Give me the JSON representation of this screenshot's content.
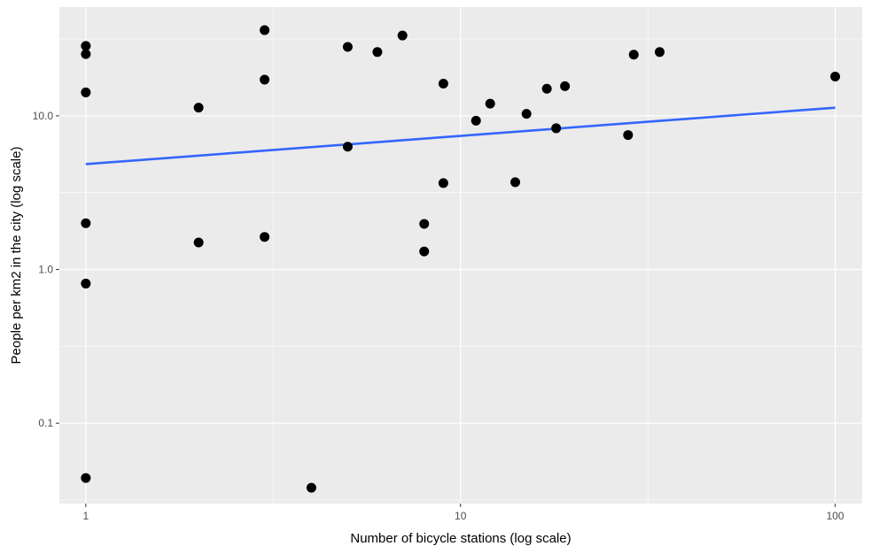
{
  "chart_data": {
    "type": "scatter",
    "xlabel": "Number of bicycle stations (log scale)",
    "ylabel": "People per km2 in the city (log scale)",
    "x_scale": "log10",
    "y_scale": "log10",
    "xlim": [
      0.85,
      118
    ],
    "ylim": [
      0.03,
      51
    ],
    "x_ticks": [
      {
        "value": 1,
        "label": "1"
      },
      {
        "value": 10,
        "label": "10"
      },
      {
        "value": 100,
        "label": "100"
      }
    ],
    "y_ticks": [
      {
        "value": 0.1,
        "label": "0.1"
      },
      {
        "value": 1,
        "label": "1.0"
      },
      {
        "value": 10,
        "label": "10.0"
      }
    ],
    "grid": true,
    "legend": "none",
    "point_color": "#000000",
    "panel_background": "#ebebeb",
    "grid_color": "#ffffff",
    "points": [
      {
        "x": 1,
        "y": 28.5
      },
      {
        "x": 1,
        "y": 25.2
      },
      {
        "x": 1,
        "y": 14.2
      },
      {
        "x": 1,
        "y": 2.0
      },
      {
        "x": 1,
        "y": 0.81
      },
      {
        "x": 1,
        "y": 0.044
      },
      {
        "x": 2,
        "y": 11.3
      },
      {
        "x": 2,
        "y": 1.5
      },
      {
        "x": 3,
        "y": 36.1
      },
      {
        "x": 3,
        "y": 17.2
      },
      {
        "x": 3,
        "y": 1.63
      },
      {
        "x": 4,
        "y": 0.038
      },
      {
        "x": 5,
        "y": 28.1
      },
      {
        "x": 5,
        "y": 6.3
      },
      {
        "x": 6,
        "y": 26.0
      },
      {
        "x": 7,
        "y": 33.3
      },
      {
        "x": 8,
        "y": 1.98
      },
      {
        "x": 8,
        "y": 1.31
      },
      {
        "x": 9,
        "y": 16.2
      },
      {
        "x": 9,
        "y": 3.65
      },
      {
        "x": 11,
        "y": 9.3
      },
      {
        "x": 12,
        "y": 12.0
      },
      {
        "x": 14,
        "y": 3.7
      },
      {
        "x": 15,
        "y": 10.3
      },
      {
        "x": 17,
        "y": 15.0
      },
      {
        "x": 18,
        "y": 8.3
      },
      {
        "x": 19,
        "y": 15.6
      },
      {
        "x": 28,
        "y": 7.5
      },
      {
        "x": 29,
        "y": 25.0
      },
      {
        "x": 34,
        "y": 26.0
      },
      {
        "x": 100,
        "y": 18.0
      }
    ],
    "trend_line": {
      "color": "#3366ff",
      "points": [
        {
          "x": 1,
          "y": 4.85
        },
        {
          "x": 100,
          "y": 11.3
        }
      ]
    }
  }
}
